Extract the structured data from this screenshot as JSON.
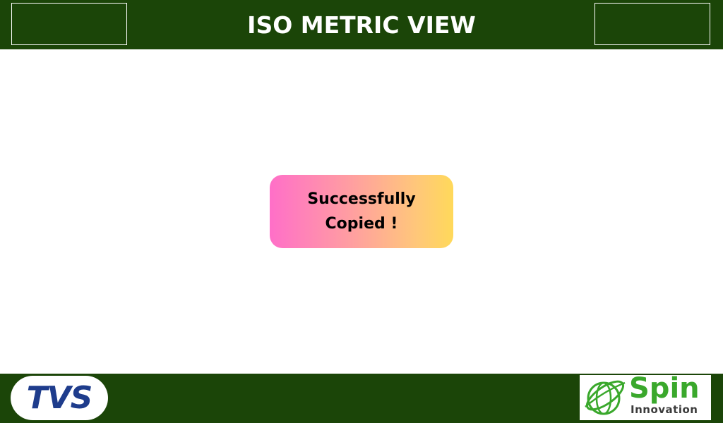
{
  "header": {
    "title": "ISO METRIC VIEW"
  },
  "toast": {
    "message": "Successfully Copied !"
  },
  "footer": {
    "left_logo_text": "TVS",
    "right_logo_word": "Spin",
    "right_logo_subword": "Innovation"
  },
  "colors": {
    "bar_background": "#1b4508",
    "page_background": "#ffffff",
    "toast_gradient_start": "#ff6fc8",
    "toast_gradient_end": "#ffd95a",
    "tvs_blue": "#1e3c8c",
    "spin_green": "#3aa82c"
  },
  "icons": {
    "right_logo_emblem": "globe-orbit-icon"
  }
}
